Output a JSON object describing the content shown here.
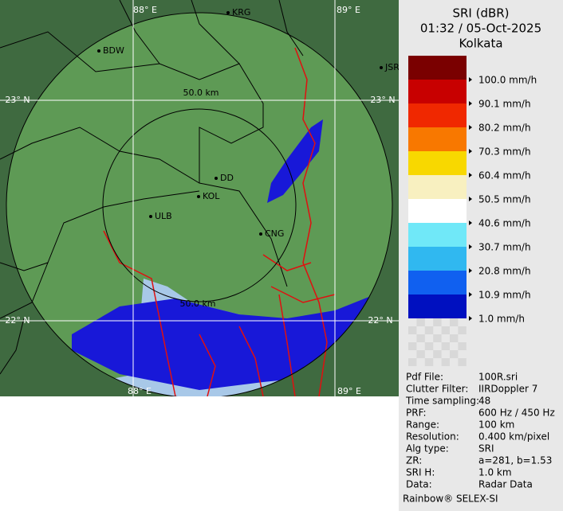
{
  "legend": {
    "title": [
      "SRI (dBR)",
      "01:32 / 05-Oct-2025",
      "Kolkata"
    ],
    "scale": [
      {
        "color": "#7a0000",
        "label": "100.0 mm/h"
      },
      {
        "color": "#c80000",
        "label": "90.1 mm/h"
      },
      {
        "color": "#f02800",
        "label": "80.2 mm/h"
      },
      {
        "color": "#f87800",
        "label": "70.3 mm/h"
      },
      {
        "color": "#f8d800",
        "label": "60.4 mm/h"
      },
      {
        "color": "#f8f0c0",
        "label": "50.5 mm/h"
      },
      {
        "color": "#ffffff",
        "label": "40.6 mm/h"
      },
      {
        "color": "#70e8f8",
        "label": "30.7 mm/h"
      },
      {
        "color": "#30b8f0",
        "label": "20.8 mm/h"
      },
      {
        "color": "#1060f0",
        "label": "10.9 mm/h"
      },
      {
        "color": "#0010c0",
        "label": "1.0 mm/h"
      }
    ]
  },
  "info": [
    [
      "Pdf File:",
      "100R.sri"
    ],
    [
      "Clutter Filter:",
      "IIRDoppler 7"
    ],
    [
      "Time sampling:",
      "48"
    ],
    [
      "PRF:",
      "600 Hz / 450 Hz"
    ],
    [
      "Range:",
      "100 km"
    ],
    [
      "Resolution:",
      "0.400 km/pixel"
    ],
    [
      "Alg type:",
      "SRI"
    ],
    [
      "ZR:",
      "a=281, b=1.53"
    ],
    [
      "SRI H:",
      "1.0 km"
    ],
    [
      "Data:",
      "Radar Data"
    ]
  ],
  "footer": "Rainbow® SELEX-SI",
  "map": {
    "grid_labels": [
      "88° E",
      "89° E",
      "23° N",
      "23° N",
      "22° N",
      "22° N",
      "88° E",
      "89° E"
    ],
    "range_labels": [
      "50.0 km",
      "50.0 km"
    ],
    "cities": [
      "BDW",
      "KRG",
      "JSR",
      "DD",
      "KOL",
      "ULB",
      "CNG"
    ]
  }
}
